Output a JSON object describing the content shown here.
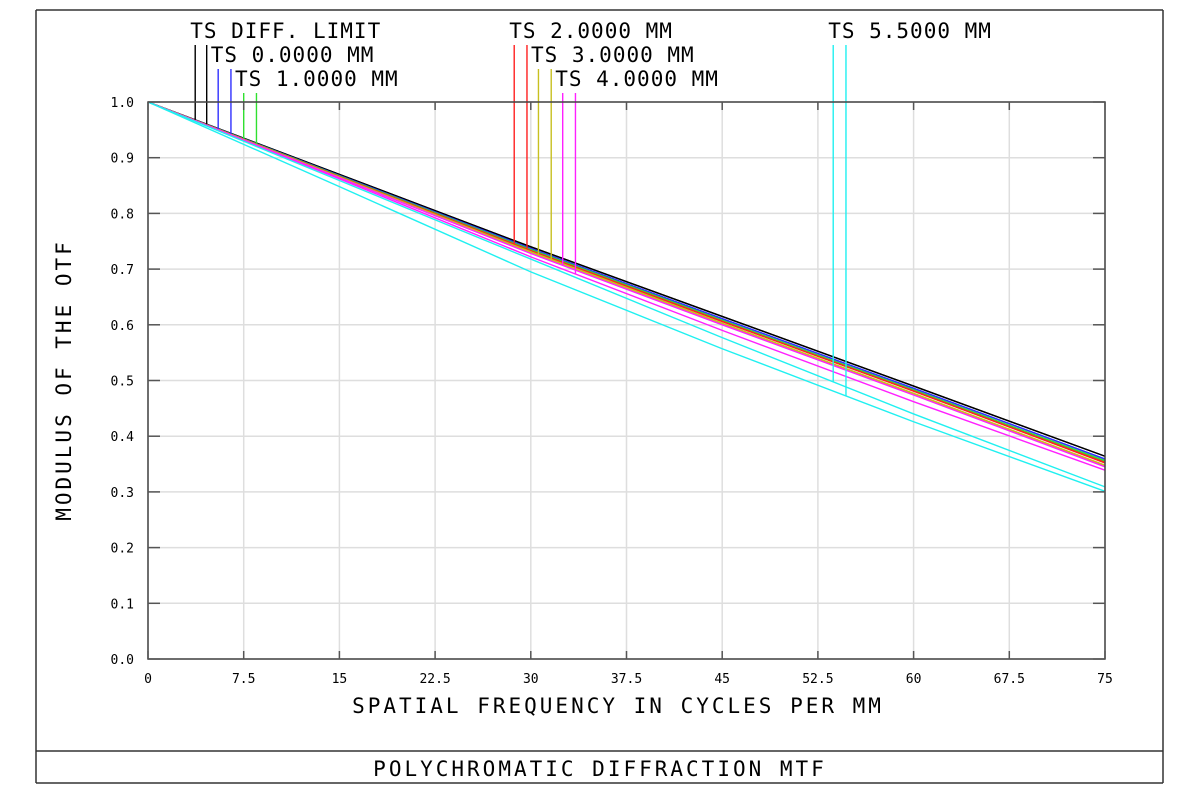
{
  "chart_data": {
    "type": "line",
    "title": "POLYCHROMATIC DIFFRACTION MTF",
    "xlabel": "SPATIAL FREQUENCY IN CYCLES PER MM",
    "ylabel": "MODULUS OF THE OTF",
    "xlim": [
      0,
      75
    ],
    "ylim": [
      0,
      1
    ],
    "grid": true,
    "x_ticks": [
      "0",
      "7.5",
      "15",
      "22.5",
      "30",
      "37.5",
      "45",
      "52.5",
      "60",
      "67.5",
      "75"
    ],
    "y_ticks": [
      "0.0",
      "0.1",
      "0.2",
      "0.3",
      "0.4",
      "0.5",
      "0.6",
      "0.7",
      "0.8",
      "0.9",
      "1.0"
    ],
    "x": [
      0,
      15,
      30,
      45,
      60,
      75
    ],
    "series": [
      {
        "name": "TS DIFF. LIMIT",
        "color": "#000000",
        "marker_x": [
          3.7,
          4.6
        ],
        "T": [
          1,
          0.87,
          0.74,
          0.615,
          0.49,
          0.364
        ],
        "S": [
          1,
          0.87,
          0.74,
          0.615,
          0.49,
          0.364
        ]
      },
      {
        "name": "TS 0.0000 MM",
        "color": "#3030ff",
        "marker_x": [
          5.5,
          6.5
        ],
        "T": [
          1,
          0.868,
          0.737,
          0.611,
          0.486,
          0.359
        ],
        "S": [
          1,
          0.868,
          0.737,
          0.611,
          0.486,
          0.359
        ]
      },
      {
        "name": "TS 1.0000 MM",
        "color": "#30e030",
        "marker_x": [
          7.5,
          8.5
        ],
        "T": [
          1,
          0.867,
          0.735,
          0.608,
          0.483,
          0.355
        ],
        "S": [
          1,
          0.867,
          0.735,
          0.608,
          0.483,
          0.356
        ]
      },
      {
        "name": "TS 2.0000 MM",
        "color": "#ff2020",
        "marker_x": [
          28.7,
          29.7
        ],
        "T": [
          1,
          0.866,
          0.733,
          0.606,
          0.481,
          0.352
        ],
        "S": [
          1,
          0.866,
          0.733,
          0.606,
          0.481,
          0.353
        ]
      },
      {
        "name": "TS 3.0000 MM",
        "color": "#c8c020",
        "marker_x": [
          30.6,
          31.6
        ],
        "T": [
          1,
          0.865,
          0.731,
          0.603,
          0.477,
          0.348
        ],
        "S": [
          1,
          0.865,
          0.73,
          0.602,
          0.476,
          0.347
        ]
      },
      {
        "name": "TS 4.0000 MM",
        "color": "#ff20ff",
        "marker_x": [
          32.5,
          33.5
        ],
        "T": [
          1,
          0.864,
          0.728,
          0.6,
          0.474,
          0.345
        ],
        "S": [
          1,
          0.862,
          0.722,
          0.59,
          0.462,
          0.339
        ]
      },
      {
        "name": "TS 5.5000 MM",
        "color": "#20f0f0",
        "marker_x": [
          53.7,
          54.7
        ],
        "T": [
          1,
          0.859,
          0.718,
          0.577,
          0.44,
          0.309
        ],
        "S": [
          1,
          0.848,
          0.695,
          0.557,
          0.426,
          0.301
        ]
      }
    ]
  }
}
